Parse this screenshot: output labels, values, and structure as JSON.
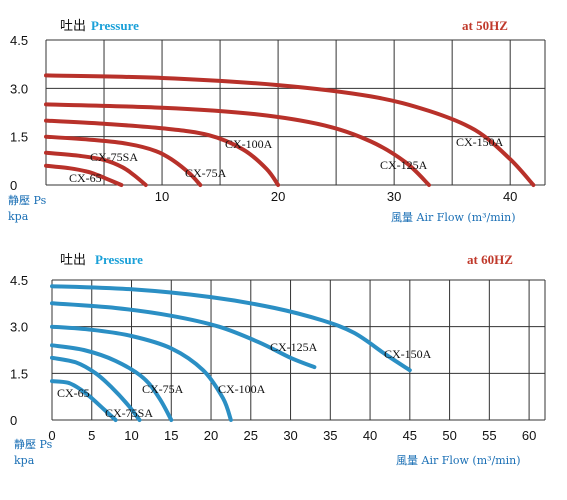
{
  "chart_data": [
    {
      "type": "line",
      "title_cn": "吐出",
      "title": "Pressure",
      "frequency": "at 50HZ",
      "ylabel_cn": "静壓",
      "ylabel": "Ps",
      "yunit": "kpa",
      "xlabel_cn": "風量",
      "xlabel": "Air Flow (m³/min)",
      "x_ticks": [
        "10",
        "20",
        "30",
        "40"
      ],
      "x_tick_values": [
        10,
        20,
        30,
        40
      ],
      "y_ticks": [
        "0",
        "1.5",
        "3.0",
        "4.5"
      ],
      "y_tick_values": [
        0,
        1.5,
        3.0,
        4.5
      ],
      "xlim": [
        0,
        43
      ],
      "ylim": [
        0,
        4.5
      ],
      "grid": true,
      "line_color": "#b8312a",
      "series": [
        {
          "name": "CX-65",
          "x": [
            0,
            2,
            3.5,
            4.5,
            5.3,
            6.5
          ],
          "y": [
            0.6,
            0.52,
            0.42,
            0.3,
            0.18,
            0
          ]
        },
        {
          "name": "CX-75SA",
          "x": [
            0,
            3,
            5,
            6.6,
            7.6,
            8.6
          ],
          "y": [
            1.0,
            0.9,
            0.78,
            0.55,
            0.3,
            0
          ]
        },
        {
          "name": "CX-75A",
          "x": [
            0,
            4,
            7,
            9.5,
            11,
            12.4,
            13.3
          ],
          "y": [
            1.5,
            1.4,
            1.28,
            1.05,
            0.75,
            0.35,
            0
          ]
        },
        {
          "name": "CX-100A",
          "x": [
            0,
            5,
            10,
            14,
            17,
            19,
            20
          ],
          "y": [
            2.0,
            1.9,
            1.76,
            1.55,
            1.1,
            0.5,
            0
          ]
        },
        {
          "name": "CX-125A",
          "x": [
            0,
            10,
            18,
            24,
            28,
            31,
            33
          ],
          "y": [
            2.5,
            2.4,
            2.2,
            1.85,
            1.35,
            0.7,
            0
          ]
        },
        {
          "name": "CX-150A",
          "x": [
            0,
            10,
            20,
            28,
            33,
            37,
            40,
            42
          ],
          "y": [
            3.4,
            3.32,
            3.1,
            2.75,
            2.3,
            1.7,
            0.8,
            0
          ]
        }
      ],
      "line_labels": [
        "CX-65",
        "CX-75SA",
        "CX-75A",
        "CX-100A",
        "CX-125A",
        "CX-150A"
      ]
    },
    {
      "type": "line",
      "title_cn": "吐出",
      "title": "Pressure",
      "frequency": "at 60HZ",
      "ylabel_cn": "静壓",
      "ylabel": "Ps",
      "yunit": "kpa",
      "xlabel_cn": "風量",
      "xlabel": "Air Flow (m³/min)",
      "x_ticks": [
        "0",
        "5",
        "10",
        "15",
        "20",
        "25",
        "30",
        "35",
        "40",
        "45",
        "50",
        "55",
        "60"
      ],
      "x_tick_values": [
        0,
        5,
        10,
        15,
        20,
        25,
        30,
        35,
        40,
        45,
        50,
        55,
        60
      ],
      "y_ticks": [
        "0",
        "1.5",
        "3.0",
        "4.5"
      ],
      "y_tick_values": [
        0,
        1.5,
        3.0,
        4.5
      ],
      "xlim": [
        0,
        62
      ],
      "ylim": [
        0,
        4.5
      ],
      "grid": true,
      "line_color": "#2b8fc4",
      "series": [
        {
          "name": "CX-65",
          "x": [
            0,
            2,
            3.5,
            5,
            6.5,
            8
          ],
          "y": [
            1.25,
            1.2,
            1.0,
            0.7,
            0.35,
            0
          ]
        },
        {
          "name": "CX-75SA",
          "x": [
            0,
            3,
            5.5,
            7.5,
            9.5,
            11
          ],
          "y": [
            2.0,
            1.85,
            1.5,
            1.05,
            0.5,
            0
          ]
        },
        {
          "name": "CX-75A",
          "x": [
            0,
            4,
            8,
            11.5,
            13.5,
            15
          ],
          "y": [
            2.4,
            2.25,
            1.9,
            1.35,
            0.7,
            0
          ]
        },
        {
          "name": "CX-100A",
          "x": [
            0,
            5,
            10,
            15,
            19,
            21.5,
            22.5
          ],
          "y": [
            3.0,
            2.9,
            2.7,
            2.3,
            1.6,
            0.7,
            0
          ]
        },
        {
          "name": "CX-125A",
          "x": [
            0,
            8,
            15,
            21,
            26,
            30,
            33
          ],
          "y": [
            3.75,
            3.6,
            3.35,
            3.0,
            2.5,
            2.0,
            1.7
          ]
        },
        {
          "name": "CX-150A",
          "x": [
            0,
            10,
            20,
            28,
            34,
            38,
            42,
            45
          ],
          "y": [
            4.3,
            4.2,
            3.95,
            3.6,
            3.2,
            2.8,
            2.1,
            1.6
          ]
        }
      ],
      "line_labels": [
        "CX-65",
        "CX-75SA",
        "CX-75A",
        "CX-100A",
        "CX-125A",
        "CX-150A"
      ]
    }
  ]
}
